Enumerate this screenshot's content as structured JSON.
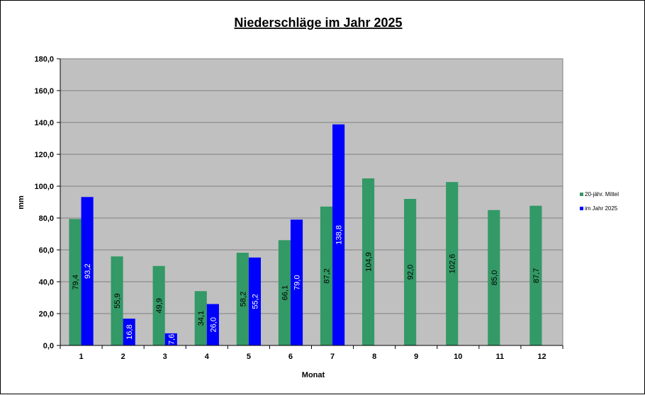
{
  "chart_data": {
    "type": "bar",
    "title": "Niederschläge im Jahr  2025",
    "xlabel": "Monat",
    "ylabel": "mm",
    "ylim": [
      0,
      180
    ],
    "ytick_step": 20,
    "ytick_labels": [
      "0,0",
      "20,0",
      "40,0",
      "60,0",
      "80,0",
      "100,0",
      "120,0",
      "140,0",
      "160,0",
      "180,0"
    ],
    "categories": [
      "1",
      "2",
      "3",
      "4",
      "5",
      "6",
      "7",
      "8",
      "9",
      "10",
      "11",
      "12"
    ],
    "grid": true,
    "legend_position": "right",
    "series": [
      {
        "name": "20-jähr. Mittel",
        "color": "#339966",
        "label_color": "#000000",
        "values": [
          79.4,
          55.9,
          49.9,
          34.1,
          58.2,
          66.1,
          87.2,
          104.9,
          92.0,
          102.6,
          85.0,
          87.7
        ],
        "labels": [
          "79,4",
          "55,9",
          "49,9",
          "34,1",
          "58,2",
          "66,1",
          "87,2",
          "104,9",
          "92,0",
          "102,6",
          "85,0",
          "87,7"
        ]
      },
      {
        "name": "im Jahr 2025",
        "color": "#0000ff",
        "label_color": "#ffffff",
        "values": [
          93.2,
          16.8,
          7.6,
          26.0,
          55.2,
          79.0,
          138.8,
          null,
          null,
          null,
          null,
          null
        ],
        "labels": [
          "93,2",
          "16,8",
          "7,6",
          "26,0",
          "55,2",
          "79,0",
          "138,8",
          "",
          "",
          "",
          "",
          ""
        ]
      }
    ],
    "plot_background": "#c0c0c0"
  }
}
